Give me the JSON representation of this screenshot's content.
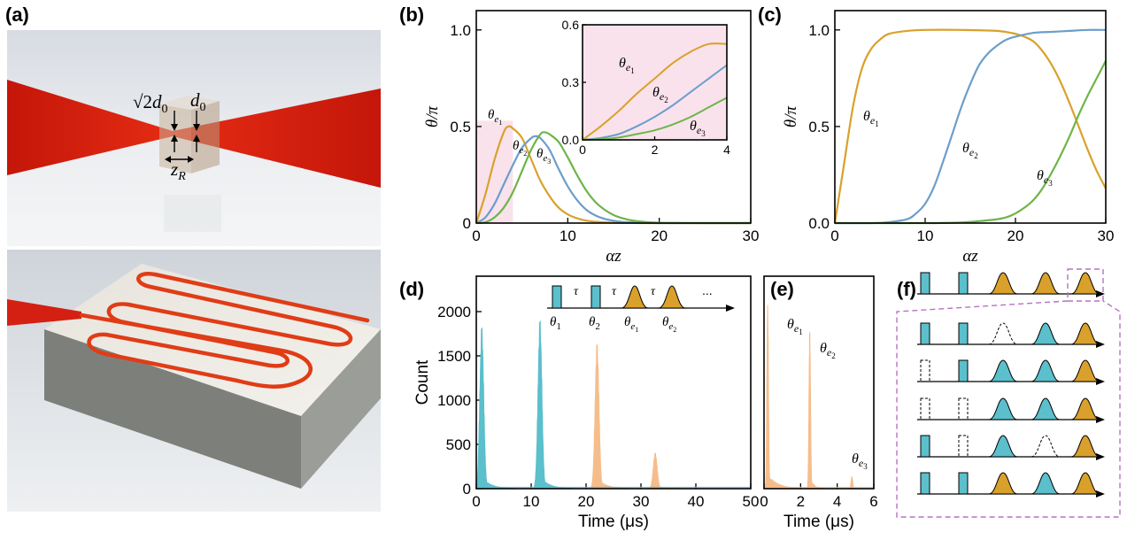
{
  "panel_labels": {
    "a": "(a)",
    "b": "(b)",
    "c": "(c)",
    "d": "(d)",
    "e": "(e)",
    "f": "(f)"
  },
  "panel_a": {
    "labels": {
      "sqrt2": "√2",
      "d0": "d",
      "d0_sub": "0",
      "d0b": "d",
      "d0b_sub": "0",
      "zr": "z",
      "zr_sub": "R"
    }
  },
  "colors": {
    "orange": "#d9a12b",
    "blue": "#6b9ecb",
    "green": "#6db54a",
    "cyan": "#5bbfcc",
    "peach": "#f6bd8c",
    "pink": "#f9e2ec",
    "purple": "#b672c0"
  },
  "chart_data": [
    {
      "id": "b",
      "type": "line",
      "xlabel": "αz",
      "ylabel": "θ/π",
      "xlim": [
        0,
        30
      ],
      "ylim": [
        0,
        1.1
      ],
      "xticks": [
        "0",
        "10",
        "20",
        "30"
      ],
      "yticks": [
        "0",
        "0.5",
        "1.0"
      ],
      "series": [
        {
          "name": "θe1",
          "color": "#d9a12b",
          "x": [
            0,
            1,
            2,
            3,
            3.5,
            4,
            5,
            6,
            7,
            8,
            9,
            10,
            11,
            12,
            13,
            14,
            15,
            16,
            18,
            20,
            25,
            30
          ],
          "y": [
            0,
            0.15,
            0.33,
            0.47,
            0.5,
            0.49,
            0.44,
            0.33,
            0.22,
            0.14,
            0.08,
            0.045,
            0.025,
            0.013,
            0.007,
            0.004,
            0.002,
            0.001,
            0,
            0,
            0,
            0
          ]
        },
        {
          "name": "θe2",
          "color": "#6b9ecb",
          "x": [
            0,
            1,
            2,
            3,
            4,
            5,
            6,
            6.5,
            7,
            8,
            9,
            10,
            11,
            12,
            13,
            14,
            15,
            16,
            18,
            20,
            25,
            30
          ],
          "y": [
            0,
            0.03,
            0.1,
            0.2,
            0.3,
            0.39,
            0.44,
            0.45,
            0.44,
            0.38,
            0.28,
            0.19,
            0.12,
            0.07,
            0.04,
            0.022,
            0.012,
            0.006,
            0.002,
            0,
            0,
            0
          ]
        },
        {
          "name": "θe3",
          "color": "#6db54a",
          "x": [
            0,
            1,
            2,
            3,
            4,
            5,
            6,
            7,
            7.5,
            8,
            9,
            10,
            11,
            12,
            13,
            14,
            15,
            16,
            17,
            18,
            20,
            25,
            30
          ],
          "y": [
            0,
            0.005,
            0.03,
            0.08,
            0.16,
            0.27,
            0.38,
            0.46,
            0.47,
            0.46,
            0.42,
            0.34,
            0.25,
            0.17,
            0.11,
            0.07,
            0.042,
            0.025,
            0.014,
            0.008,
            0.002,
            0,
            0
          ]
        }
      ],
      "inset": {
        "xlim": [
          0,
          4
        ],
        "ylim": [
          0,
          0.6
        ],
        "xticks": [
          "0",
          "2",
          "4"
        ],
        "yticks": [
          "0.0",
          "0.3",
          "0.6"
        ],
        "series": [
          {
            "name": "θe1",
            "color": "#d9a12b",
            "x": [
              0,
              0.5,
              1,
              1.5,
              2,
              2.5,
              3,
              3.5,
              4
            ],
            "y": [
              0,
              0.07,
              0.15,
              0.24,
              0.32,
              0.4,
              0.46,
              0.5,
              0.5
            ]
          },
          {
            "name": "θe2",
            "color": "#6b9ecb",
            "x": [
              0,
              0.5,
              1,
              1.5,
              2,
              2.5,
              3,
              3.5,
              4
            ],
            "y": [
              0,
              0.01,
              0.03,
              0.07,
              0.12,
              0.18,
              0.25,
              0.32,
              0.39
            ]
          },
          {
            "name": "θe3",
            "color": "#6db54a",
            "x": [
              0,
              0.5,
              1,
              1.5,
              2,
              2.5,
              3,
              3.5,
              4
            ],
            "y": [
              0,
              0.003,
              0.012,
              0.03,
              0.05,
              0.08,
              0.12,
              0.17,
              0.22
            ]
          }
        ]
      },
      "highlight_x": [
        0,
        4
      ]
    },
    {
      "id": "c",
      "type": "line",
      "xlabel": "αz",
      "ylabel": "θ/π",
      "xlim": [
        0,
        30
      ],
      "ylim": [
        0,
        1.1
      ],
      "xticks": [
        "0",
        "10",
        "20",
        "30"
      ],
      "yticks": [
        "0.0",
        "0.5",
        "1.0"
      ],
      "series": [
        {
          "name": "θe1",
          "color": "#d9a12b",
          "x": [
            0,
            1,
            2,
            3,
            4,
            5,
            6,
            8,
            10,
            14,
            18,
            20,
            21,
            22,
            23,
            24,
            25,
            26,
            27,
            28,
            29,
            30
          ],
          "y": [
            0,
            0.3,
            0.6,
            0.8,
            0.9,
            0.95,
            0.98,
            0.995,
            1,
            1,
            0.995,
            0.98,
            0.965,
            0.94,
            0.89,
            0.82,
            0.73,
            0.62,
            0.5,
            0.38,
            0.27,
            0.18
          ]
        },
        {
          "name": "θe2",
          "color": "#6b9ecb",
          "x": [
            0,
            4,
            6,
            8,
            9,
            10,
            11,
            12,
            13,
            14,
            15,
            16,
            17,
            18,
            19,
            20,
            22,
            24,
            26,
            28,
            30
          ],
          "y": [
            0,
            0,
            0.005,
            0.02,
            0.05,
            0.1,
            0.19,
            0.32,
            0.46,
            0.6,
            0.72,
            0.82,
            0.88,
            0.92,
            0.95,
            0.965,
            0.985,
            0.99,
            0.995,
            1,
            1
          ]
        },
        {
          "name": "θe3",
          "color": "#6db54a",
          "x": [
            0,
            10,
            14,
            16,
            18,
            19,
            20,
            21,
            22,
            23,
            24,
            25,
            26,
            27,
            28,
            29,
            30
          ],
          "y": [
            0,
            0,
            0.003,
            0.01,
            0.02,
            0.03,
            0.05,
            0.08,
            0.12,
            0.18,
            0.26,
            0.35,
            0.45,
            0.56,
            0.66,
            0.75,
            0.84
          ]
        }
      ]
    },
    {
      "id": "d",
      "type": "histogram",
      "xlabel": "Time (μs)",
      "ylabel": "Count",
      "xlim": [
        0,
        50
      ],
      "ylim": [
        0,
        2400
      ],
      "xticks": [
        "0",
        "10",
        "20",
        "30",
        "40",
        "50"
      ],
      "yticks": [
        "0",
        "500",
        "1000",
        "1500",
        "2000"
      ],
      "peaks": [
        {
          "center": 1.0,
          "height": 1850,
          "color": "#5bbfcc"
        },
        {
          "center": 11.6,
          "height": 1930,
          "color": "#5bbfcc"
        },
        {
          "center": 22.0,
          "height": 1660,
          "color": "#f6bd8c"
        },
        {
          "center": 32.6,
          "height": 410,
          "color": "#f6bd8c"
        }
      ],
      "inset_labels": {
        "tau": "τ",
        "dots": "...",
        "theta1": "θ",
        "theta1_sub": "1",
        "theta2": "θ",
        "theta2_sub": "2",
        "thetae1": "θ",
        "thetae1_sub": "e",
        "thetae1_subsub": "1",
        "thetae2": "θ",
        "thetae2_sub": "e",
        "thetae2_subsub": "2"
      }
    },
    {
      "id": "e",
      "type": "histogram",
      "xlabel": "Time (μs)",
      "xlim": [
        0,
        6
      ],
      "ylim": [
        0,
        2400
      ],
      "xticks": [
        "0",
        "2",
        "4",
        "6"
      ],
      "peaks": [
        {
          "center": 0.2,
          "height": 2170,
          "color": "#f6bd8c"
        },
        {
          "center": 2.5,
          "height": 1800,
          "color": "#f6bd8c"
        },
        {
          "center": 4.8,
          "height": 140,
          "color": "#f6bd8c"
        }
      ]
    }
  ],
  "labels_theta": {
    "theta": "θ",
    "e": "e",
    "s1": "1",
    "s2": "2",
    "s3": "3"
  }
}
